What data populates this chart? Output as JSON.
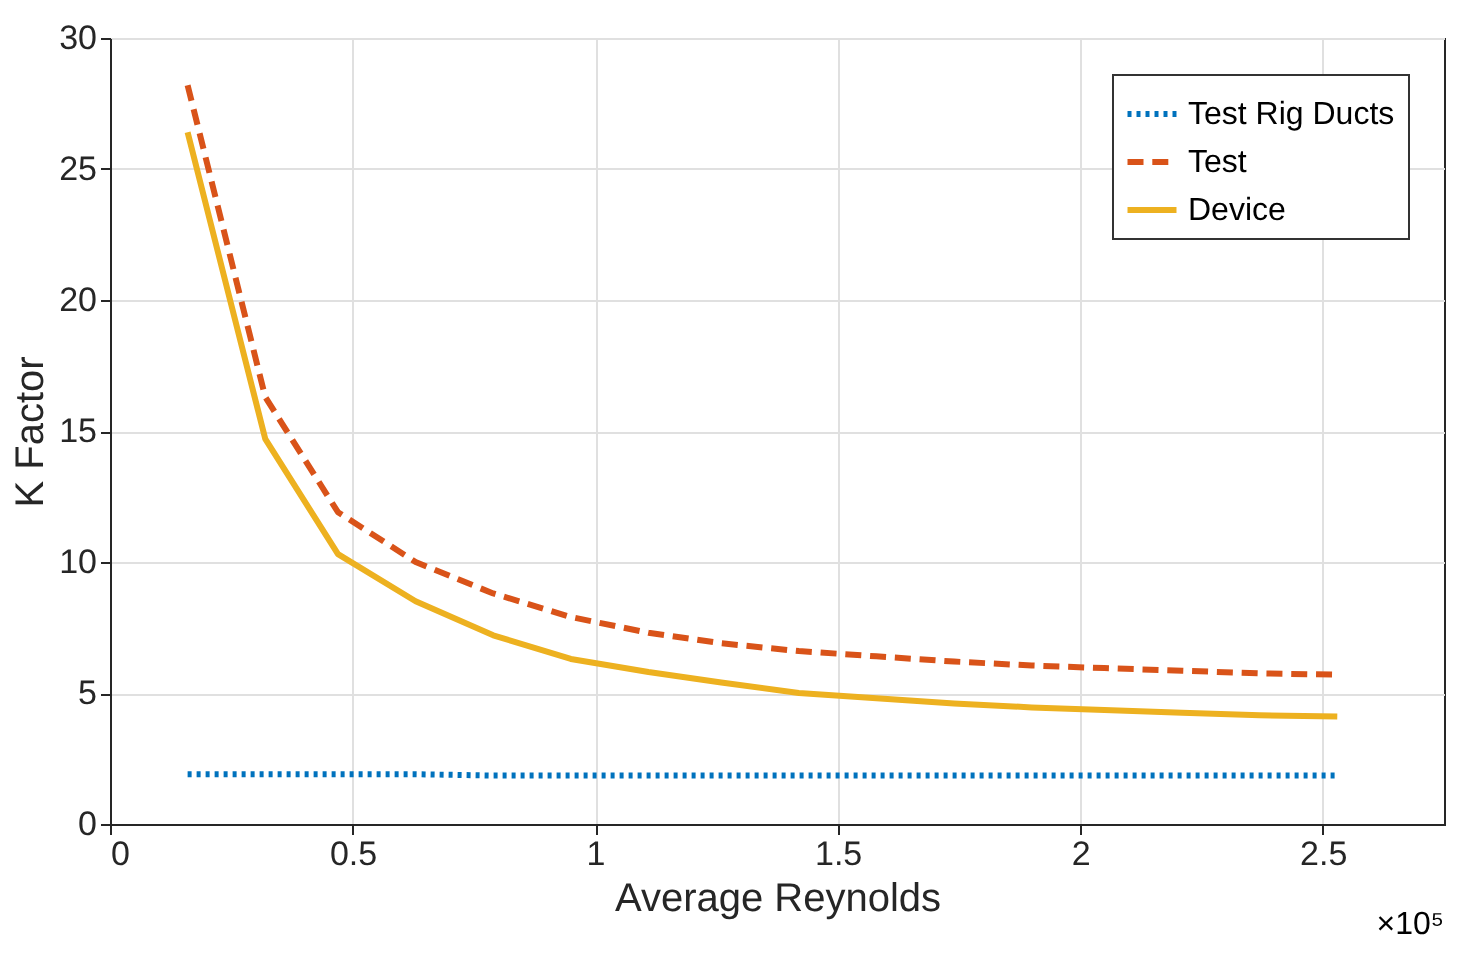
{
  "chart_data": {
    "type": "line",
    "xlabel": "Average Reynolds",
    "ylabel": "K Factor",
    "annotations": [
      "×10⁵"
    ],
    "x": [
      0.16,
      0.32,
      0.47,
      0.63,
      0.79,
      0.95,
      1.11,
      1.26,
      1.42,
      1.58,
      1.74,
      1.9,
      2.05,
      2.21,
      2.37,
      2.53
    ],
    "series": [
      {
        "name": "Test Rig Ducts",
        "color": "#0072bd",
        "line_style": "dotted",
        "values": [
          1.9,
          1.9,
          1.9,
          1.9,
          1.85,
          1.85,
          1.85,
          1.85,
          1.85,
          1.85,
          1.85,
          1.85,
          1.85,
          1.85,
          1.85,
          1.85
        ]
      },
      {
        "name": "Test",
        "color": "#d95319",
        "line_style": "dashed",
        "values": [
          28.2,
          16.3,
          11.9,
          10.0,
          8.8,
          7.9,
          7.3,
          6.9,
          6.6,
          6.4,
          6.2,
          6.05,
          5.95,
          5.85,
          5.75,
          5.7
        ]
      },
      {
        "name": "Device",
        "color": "#edb120",
        "line_style": "solid",
        "values": [
          26.4,
          14.7,
          10.3,
          8.5,
          7.2,
          6.3,
          5.8,
          5.4,
          5.0,
          4.8,
          4.6,
          4.45,
          4.35,
          4.25,
          4.15,
          4.1
        ]
      }
    ],
    "xlim": [
      0,
      2.75
    ],
    "xticks": [
      0,
      0.5,
      1,
      1.5,
      2,
      2.5
    ],
    "ylim": [
      0,
      30
    ],
    "yticks": [
      0,
      5,
      10,
      15,
      20,
      25,
      30
    ],
    "grid": true,
    "legend": "top right"
  }
}
